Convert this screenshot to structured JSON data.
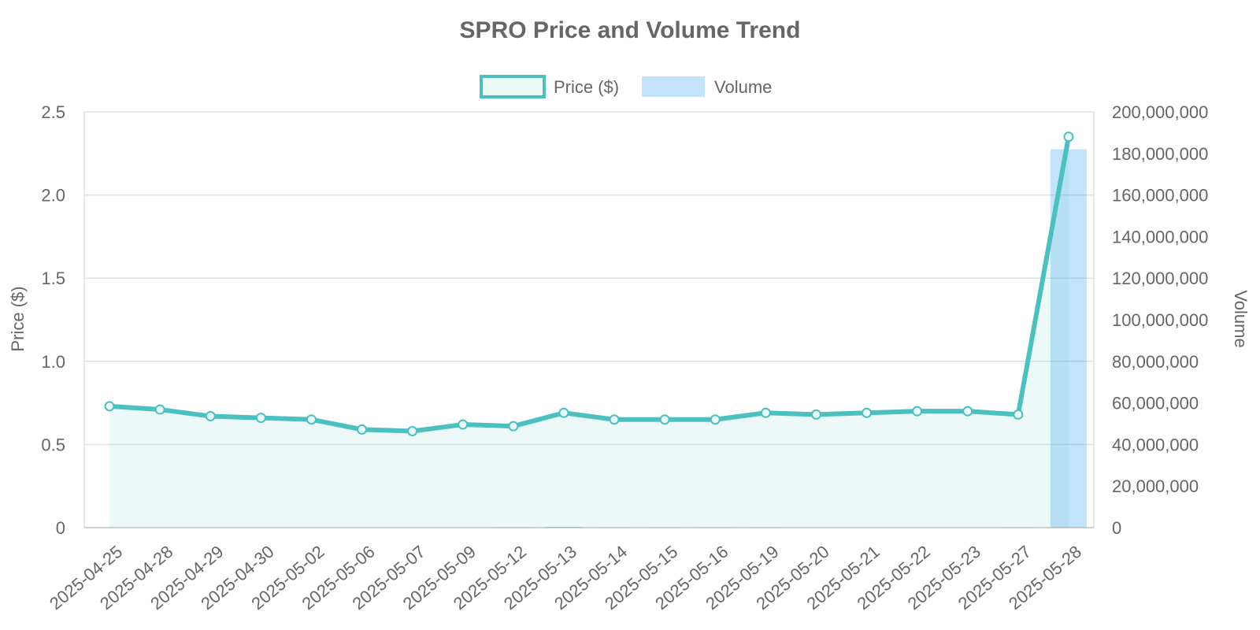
{
  "chart_data": {
    "type": "line",
    "title": "SPRO Price and Volume Trend",
    "categories": [
      "2025-04-25",
      "2025-04-28",
      "2025-04-29",
      "2025-04-30",
      "2025-05-02",
      "2025-05-06",
      "2025-05-07",
      "2025-05-09",
      "2025-05-12",
      "2025-05-13",
      "2025-05-14",
      "2025-05-15",
      "2025-05-16",
      "2025-05-19",
      "2025-05-20",
      "2025-05-21",
      "2025-05-22",
      "2025-05-23",
      "2025-05-27",
      "2025-05-28"
    ],
    "series": [
      {
        "name": "Price ($)",
        "type": "line",
        "axis": "left",
        "color": "#4bc0c0",
        "fill_color": "rgba(75,192,192,0.1)",
        "values": [
          0.73,
          0.71,
          0.67,
          0.66,
          0.65,
          0.59,
          0.58,
          0.62,
          0.61,
          0.69,
          0.65,
          0.65,
          0.65,
          0.69,
          0.68,
          0.69,
          0.7,
          0.7,
          0.68,
          2.35
        ]
      },
      {
        "name": "Volume",
        "type": "bar",
        "axis": "right",
        "color": "rgba(54,162,235,0.3)",
        "values": [
          20000,
          15000,
          12000,
          10000,
          9000,
          18000,
          15000,
          20000,
          150000,
          400000,
          80000,
          60000,
          90000,
          30000,
          20000,
          25000,
          20000,
          15000,
          50000,
          182000000
        ]
      }
    ],
    "y_left": {
      "label": "Price ($)",
      "ylim": [
        0,
        2.5
      ],
      "ticks": [
        0,
        0.5,
        1.0,
        1.5,
        2.0,
        2.5
      ],
      "tick_labels": [
        "0",
        "0.5",
        "1.0",
        "1.5",
        "2.0",
        "2.5"
      ]
    },
    "y_right": {
      "label": "Volume",
      "ylim": [
        0,
        200000000
      ],
      "ticks": [
        0,
        20000000,
        40000000,
        60000000,
        80000000,
        100000000,
        120000000,
        140000000,
        160000000,
        180000000,
        200000000
      ],
      "tick_labels": [
        "0",
        "20,000,000",
        "40,000,000",
        "60,000,000",
        "80,000,000",
        "100,000,000",
        "120,000,000",
        "140,000,000",
        "160,000,000",
        "180,000,000",
        "200,000,000"
      ]
    },
    "grid": true,
    "legend": "top-center"
  }
}
